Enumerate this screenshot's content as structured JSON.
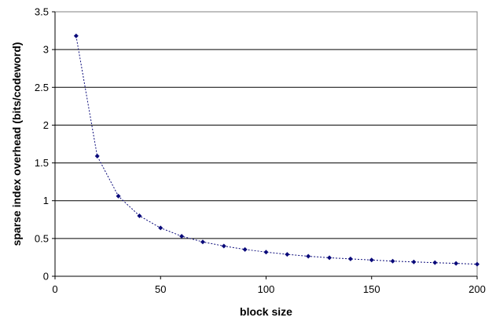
{
  "chart_data": {
    "type": "scatter",
    "title": "",
    "xlabel": "block size",
    "ylabel": "sparse index overhead (bits/codeword)",
    "xlim": [
      0,
      200
    ],
    "ylim": [
      0,
      3.5
    ],
    "x_ticks": [
      "0",
      "50",
      "100",
      "150",
      "200"
    ],
    "y_ticks": [
      "0",
      "0.5",
      "1",
      "1.5",
      "2",
      "2.5",
      "3",
      "3.5"
    ],
    "grid": "horizontal",
    "legend": "none",
    "series": [
      {
        "x": [
          10,
          20,
          30,
          40,
          50,
          60,
          70,
          80,
          90,
          100,
          110,
          120,
          130,
          140,
          150,
          160,
          170,
          180,
          190,
          200
        ],
        "y": [
          3.18,
          1.59,
          1.06,
          0.8,
          0.64,
          0.53,
          0.455,
          0.4,
          0.355,
          0.32,
          0.29,
          0.265,
          0.245,
          0.23,
          0.215,
          0.2,
          0.19,
          0.18,
          0.17,
          0.16
        ],
        "marker": "diamond",
        "line": "dotted",
        "color": "#0a0a7a"
      }
    ]
  }
}
